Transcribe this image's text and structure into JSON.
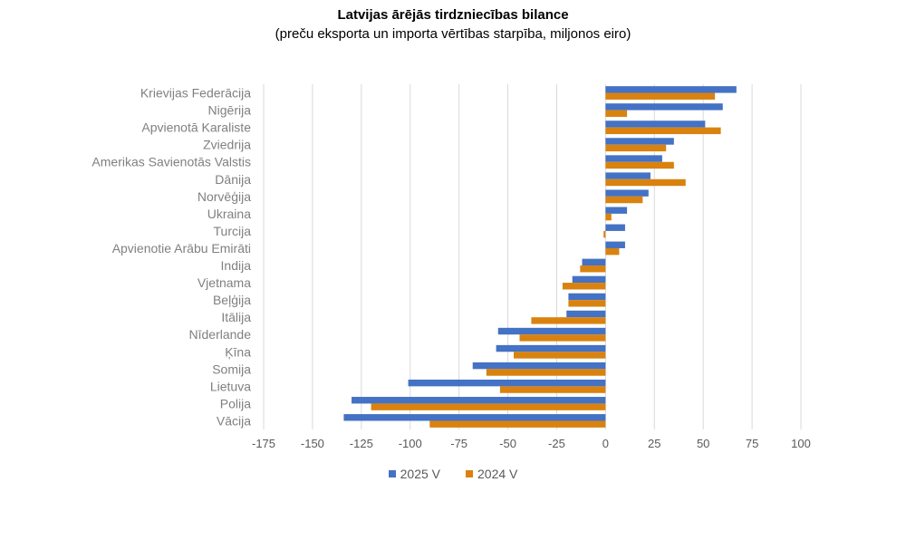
{
  "chart_data": {
    "type": "bar",
    "orientation": "horizontal",
    "title": "Latvijas ārējās tirdzniecības bilance",
    "subtitle": "(preču eksporta un importa vērtības starpība, miljonos eiro)",
    "categories": [
      "Krievijas Federācija",
      "Nigērija",
      "Apvienotā Karaliste",
      "Zviedrija",
      "Amerikas Savienotās Valstis",
      "Dānija",
      "Norvēģija",
      "Ukraina",
      "Turcija",
      "Apvienotie Arābu Emirāti",
      "Indija",
      "Vjetnama",
      "Beļģija",
      "Itālija",
      "Nīderlande",
      "Ķīna",
      "Somija",
      "Lietuva",
      "Polija",
      "Vācija"
    ],
    "series": [
      {
        "name": "2025 V",
        "color": "#4472C4",
        "values": [
          67,
          60,
          51,
          35,
          29,
          23,
          22,
          11,
          10,
          10,
          -12,
          -17,
          -19,
          -20,
          -55,
          -56,
          -68,
          -101,
          -130,
          -134
        ]
      },
      {
        "name": "2024 V",
        "color": "#D9820F",
        "values": [
          56,
          11,
          59,
          31,
          35,
          41,
          19,
          3,
          -1,
          7,
          -13,
          -22,
          -19,
          -38,
          -44,
          -47,
          -61,
          -54,
          -120,
          -90
        ]
      }
    ],
    "xlim": [
      -175,
      100
    ],
    "xticks": [
      -175,
      -150,
      -125,
      -100,
      -75,
      -50,
      -25,
      0,
      25,
      50,
      75,
      100
    ],
    "grid": true,
    "legend": "bottom"
  }
}
